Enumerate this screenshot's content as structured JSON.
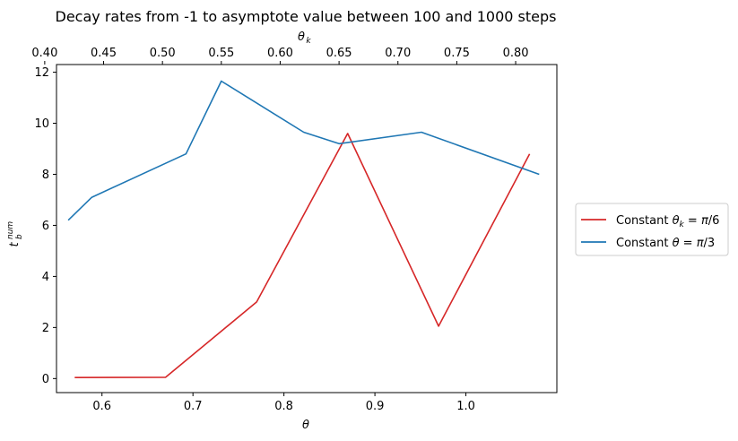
{
  "chart_data": {
    "type": "line",
    "title": "Decay rates from -1 to asymptote value between 100 and 1000 steps",
    "xlabel": "θ",
    "x2label": "θ_k",
    "ylabel": "t_b^num",
    "xlim": [
      0.55,
      1.1
    ],
    "x2lim": [
      0.41,
      0.835
    ],
    "ylim": [
      -0.55,
      12.3
    ],
    "xticks": [
      0.6,
      0.7,
      0.8,
      0.9,
      1.0
    ],
    "xtick_labels": [
      "0.6",
      "0.7",
      "0.8",
      "0.9",
      "1.0"
    ],
    "x2ticks": [
      0.4,
      0.45,
      0.5,
      0.55,
      0.6,
      0.65,
      0.7,
      0.75,
      0.8
    ],
    "x2tick_labels": [
      "0.40",
      "0.45",
      "0.50",
      "0.55",
      "0.60",
      "0.65",
      "0.70",
      "0.75",
      "0.80"
    ],
    "yticks": [
      0,
      2,
      4,
      6,
      8,
      10,
      12
    ],
    "ytick_labels": [
      "0",
      "2",
      "4",
      "6",
      "8",
      "10",
      "12"
    ],
    "grid": false,
    "legend_position": "right-outside",
    "series": [
      {
        "name": "Constant θk = π/6",
        "axis": "bottom",
        "color": "#d62728",
        "x": [
          0.57,
          0.67,
          0.77,
          0.87,
          0.97,
          1.07
        ],
        "y": [
          0.04,
          0.05,
          3.0,
          9.6,
          2.05,
          8.8
        ]
      },
      {
        "name": "Constant θ = π/3",
        "axis": "top",
        "color": "#1f77b4",
        "x": [
          0.42,
          0.44,
          0.52,
          0.55,
          0.62,
          0.65,
          0.72,
          0.82
        ],
        "y": [
          6.2,
          7.1,
          8.8,
          11.65,
          9.65,
          9.2,
          9.65,
          8.0
        ]
      }
    ]
  }
}
